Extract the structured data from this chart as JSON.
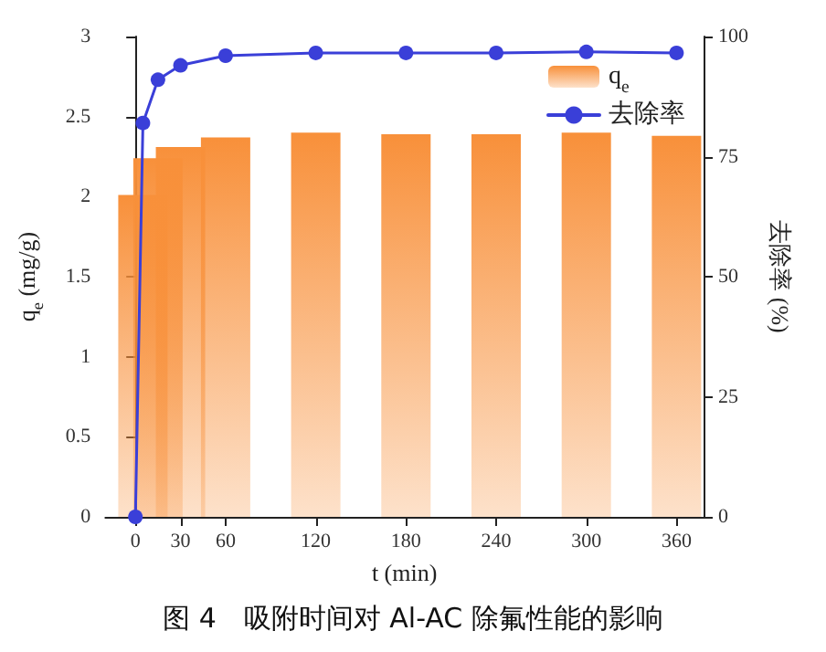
{
  "chart_data": {
    "type": "bar",
    "title": "图 4　吸附时间对 Al-AC 除氟性能的影响",
    "xlabel": "t (min)",
    "ylabel": "q$_{e}$ (mg/g)",
    "y2label": "去除率 (%)",
    "xlim": [
      -20,
      378
    ],
    "xticks": [
      0,
      30,
      60,
      120,
      180,
      240,
      300,
      360
    ],
    "ylim": [
      0,
      3
    ],
    "yticks": [
      0,
      0.5,
      1,
      1.5,
      2,
      2.5,
      3
    ],
    "y2lim": [
      0,
      100
    ],
    "y2ticks": [
      0,
      25,
      50,
      75,
      100
    ],
    "series": [
      {
        "name": "q$_{e}$",
        "color": "#f8903a",
        "x": [
          5,
          15,
          30,
          60,
          120,
          180,
          240,
          300,
          360
        ],
        "values": [
          2.01,
          2.24,
          2.31,
          2.37,
          2.4,
          2.39,
          2.39,
          2.4,
          2.38
        ]
      },
      {
        "name": "去除率",
        "type": "line",
        "axis": "y2",
        "color": "#3a3fd8",
        "x": [
          0,
          5,
          15,
          30,
          60,
          120,
          180,
          240,
          300,
          360
        ],
        "values": [
          0,
          82,
          91,
          94,
          96,
          96.6,
          96.6,
          96.6,
          96.8,
          96.6
        ]
      }
    ],
    "marker": "circle",
    "line_style": "solid",
    "grid": false,
    "legend": "top right"
  }
}
